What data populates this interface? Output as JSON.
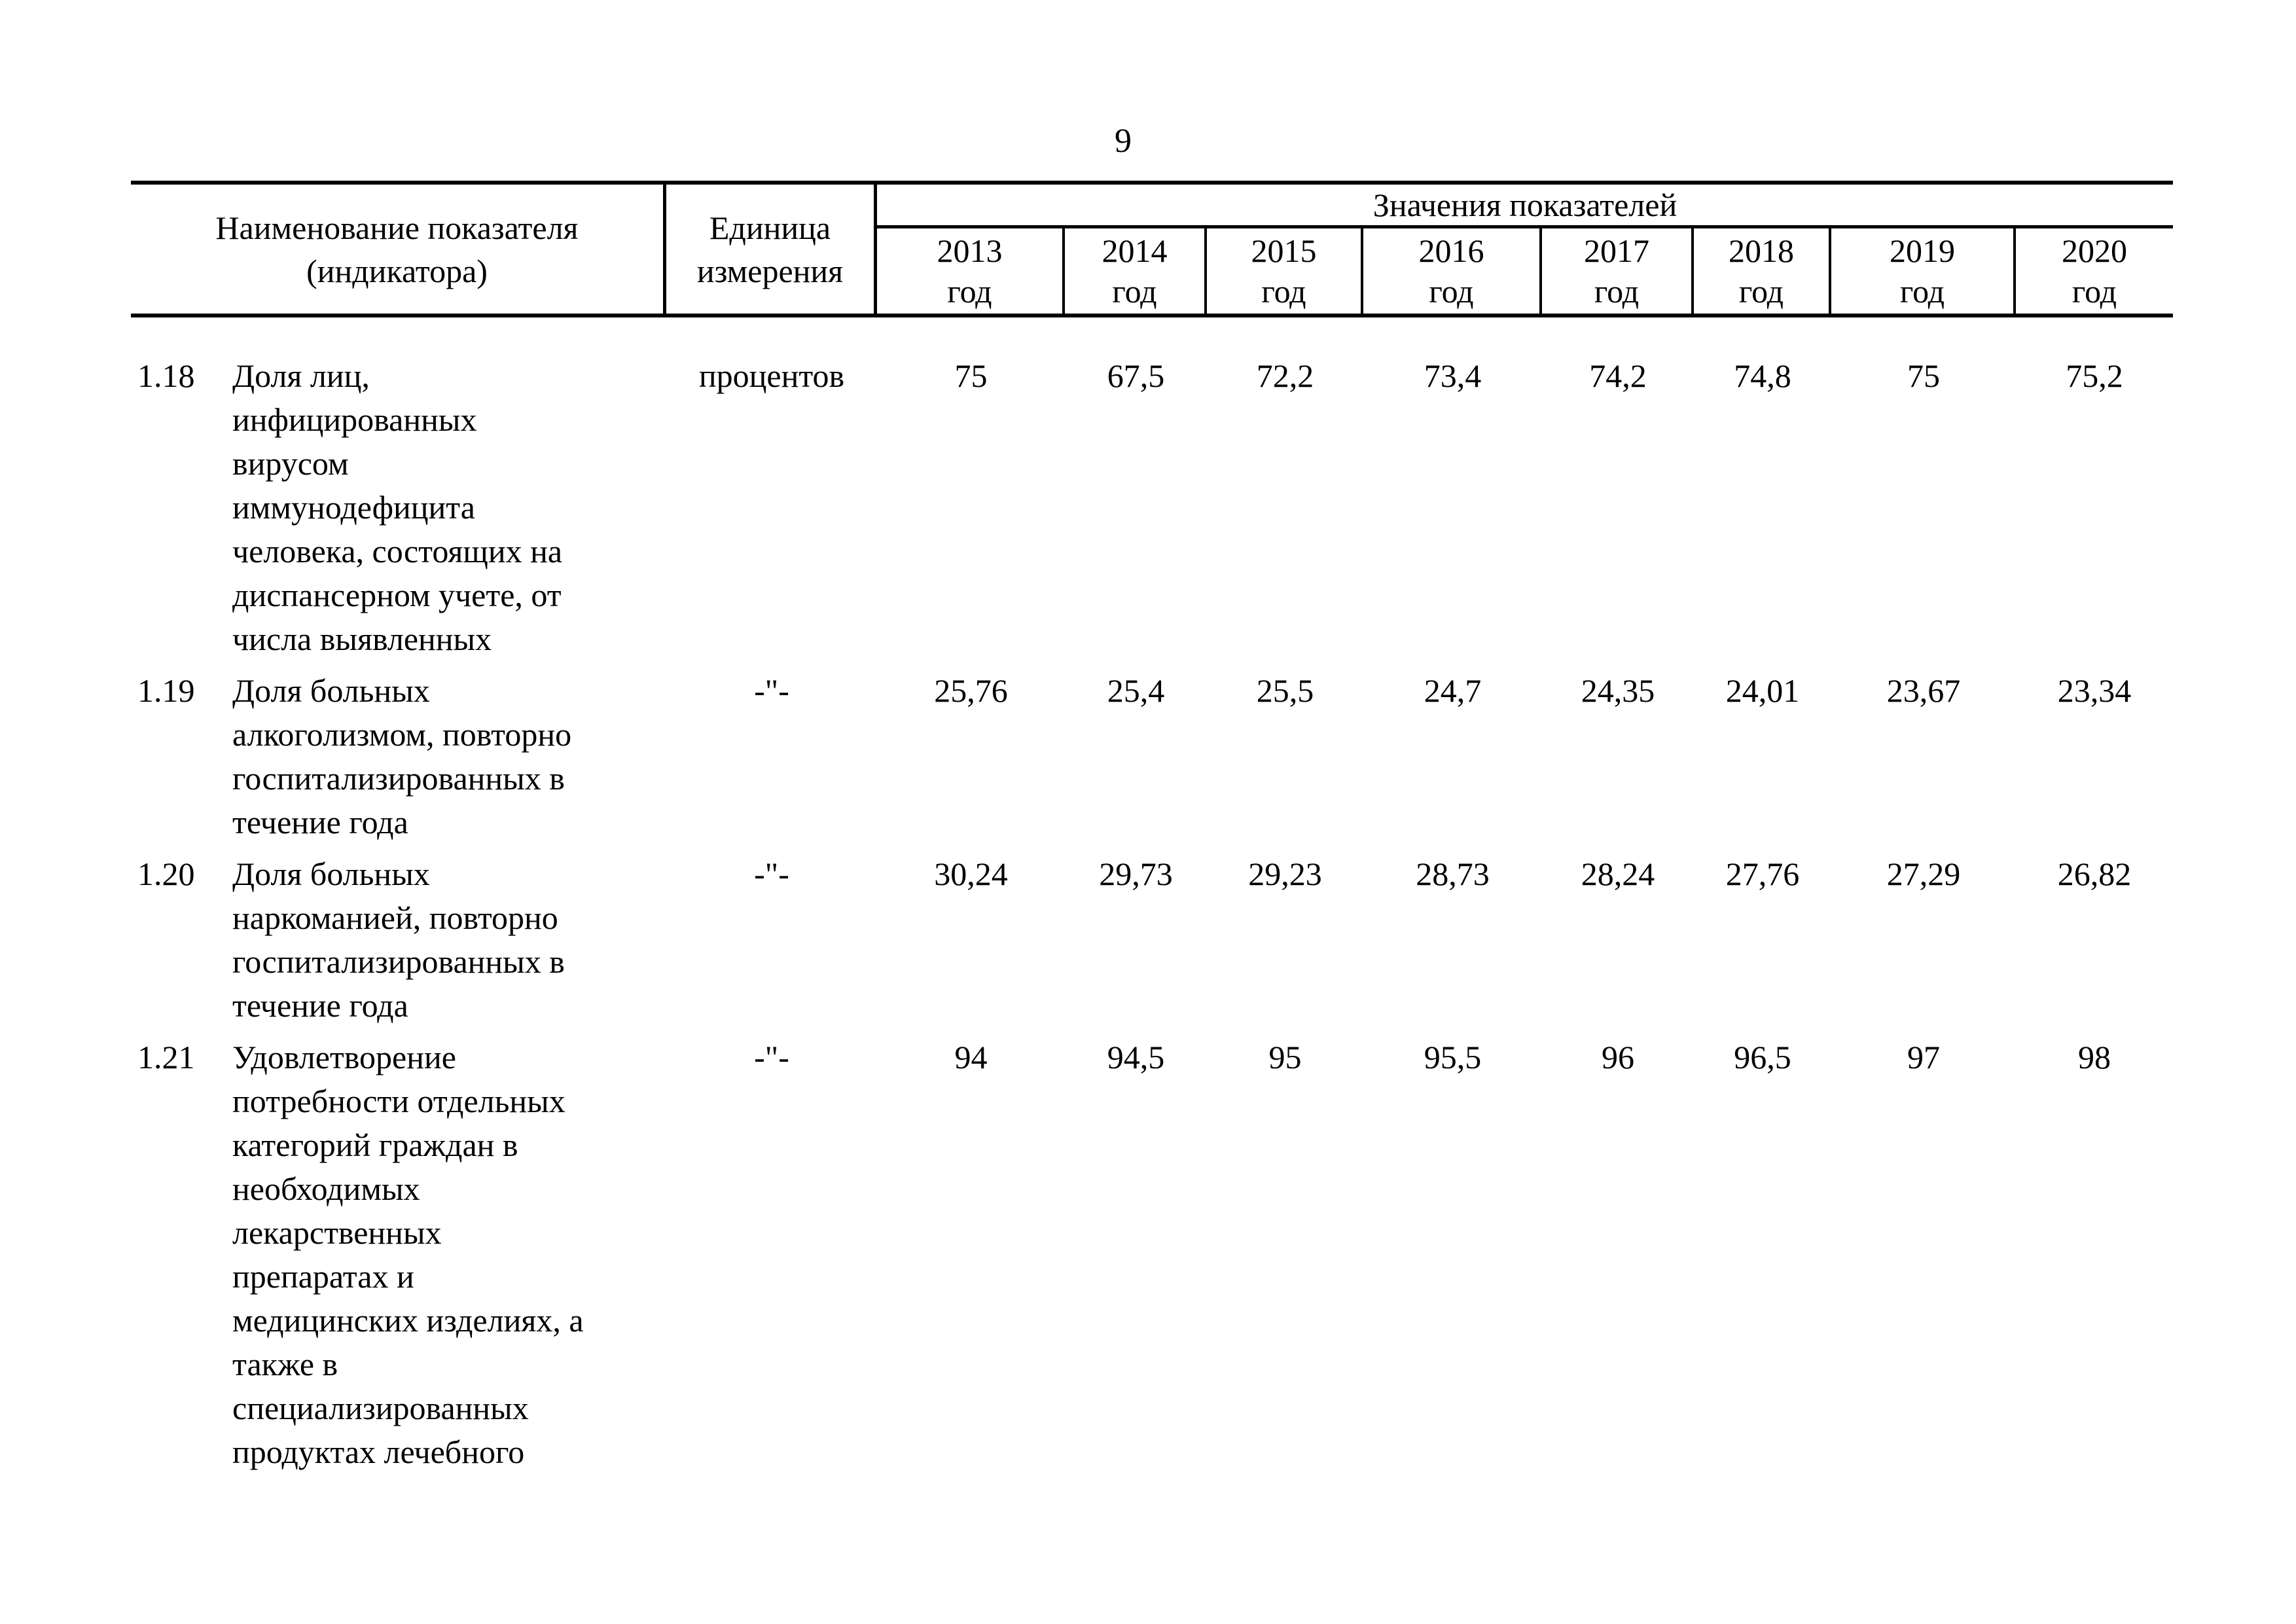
{
  "page_number": "9",
  "table": {
    "header": {
      "name_lines": [
        "Наименование показателя",
        "(индикатора)"
      ],
      "unit_lines": [
        "Единица",
        "измерения"
      ],
      "values_group": "Значения показателей",
      "years": [
        "2013",
        "2014",
        "2015",
        "2016",
        "2017",
        "2018",
        "2019",
        "2020"
      ],
      "year_suffix": "год"
    },
    "rows": [
      {
        "num": "1.18",
        "name_lines": [
          "Доля лиц,",
          "инфицированных",
          "вирусом",
          "иммунодефицита",
          "человека, состоящих на",
          "диспансерном учете, от",
          "числа выявленных"
        ],
        "unit": "процентов",
        "values": [
          "75",
          "67,5",
          "72,2",
          "73,4",
          "74,2",
          "74,8",
          "75",
          "75,2"
        ]
      },
      {
        "num": "1.19",
        "name_lines": [
          "Доля больных",
          "алкоголизмом, повторно",
          "госпитализированных в",
          "течение года"
        ],
        "unit": "-\"-",
        "values": [
          "25,76",
          "25,4",
          "25,5",
          "24,7",
          "24,35",
          "24,01",
          "23,67",
          "23,34"
        ]
      },
      {
        "num": "1.20",
        "name_lines": [
          "Доля больных",
          "наркоманией, повторно",
          "госпитализированных в",
          "течение года"
        ],
        "unit": "-\"-",
        "values": [
          "30,24",
          "29,73",
          "29,23",
          "28,73",
          "28,24",
          "27,76",
          "27,29",
          "26,82"
        ]
      },
      {
        "num": "1.21",
        "name_lines": [
          "Удовлетворение",
          "потребности отдельных",
          "категорий граждан в",
          "необходимых",
          "лекарственных",
          "препаратах и",
          "медицинских изделиях, а",
          "также в",
          "специализированных",
          "продуктах лечебного"
        ],
        "unit": "-\"-",
        "values": [
          "94",
          "94,5",
          "95",
          "95,5",
          "96",
          "96,5",
          "97",
          "98"
        ]
      }
    ]
  }
}
